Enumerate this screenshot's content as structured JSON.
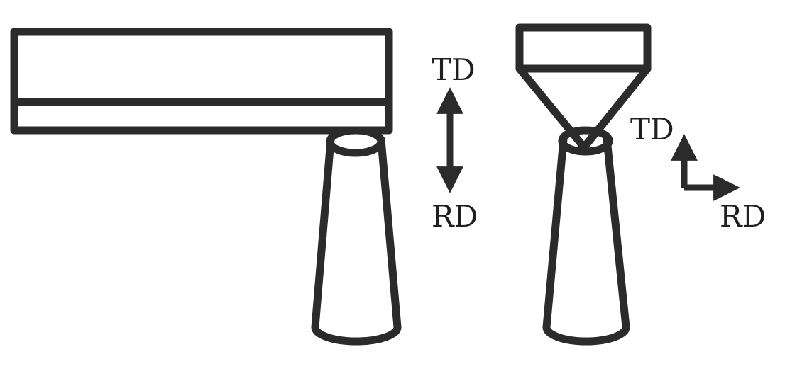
{
  "colors": {
    "stroke": "#2b2b2b",
    "text": "#1f1f1f",
    "background": "#ffffff"
  },
  "left_diagram": {
    "top_label": "TD",
    "bottom_label": "RD"
  },
  "right_diagram": {
    "vertical_label": "TD",
    "horizontal_label": "RD"
  }
}
